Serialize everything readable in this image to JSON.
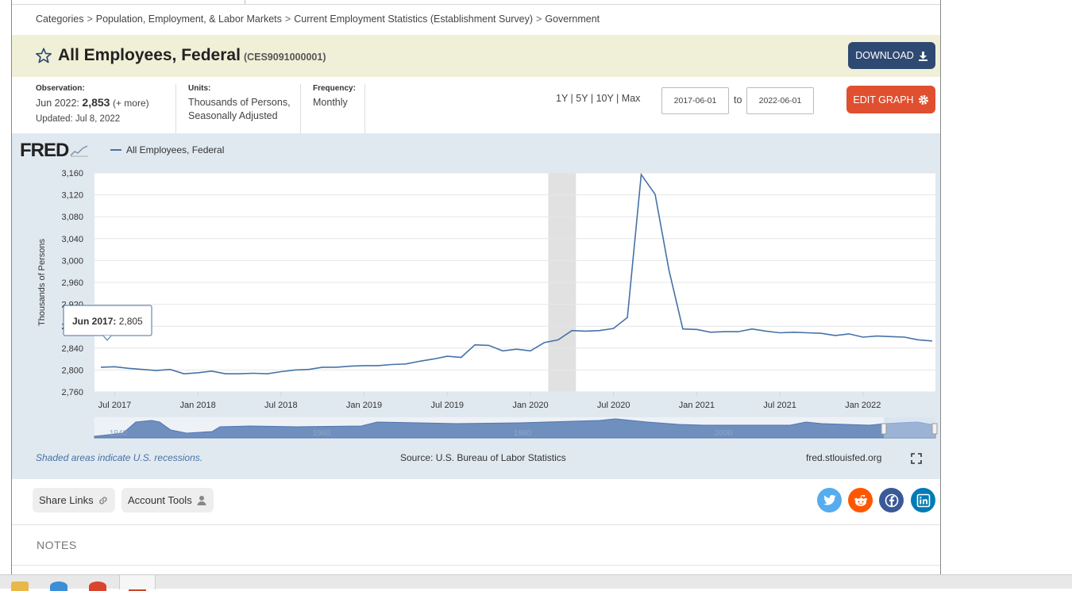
{
  "breadcrumb": [
    "Categories",
    "Population, Employment, & Labor Markets",
    "Current Employment Statistics (Establishment Survey)",
    "Government"
  ],
  "header": {
    "title": "All Employees, Federal",
    "series_id": "(CES9091000001)",
    "download_label": "DOWNLOAD"
  },
  "meta": {
    "observation_label": "Observation:",
    "observation_date": "Jun 2022:",
    "observation_value": "2,853",
    "observation_more": "(+ more)",
    "updated": "Updated: Jul 8, 2022",
    "units_label": "Units:",
    "units_line1": "Thousands of Persons,",
    "units_line2": "Seasonally Adjusted",
    "frequency_label": "Frequency:",
    "frequency_value": "Monthly"
  },
  "range": {
    "options": [
      "1Y",
      "5Y",
      "10Y",
      "Max"
    ],
    "start_date": "2017-06-01",
    "to_label": "to",
    "end_date": "2022-06-01"
  },
  "edit_graph_label": "EDIT GRAPH",
  "graph": {
    "logo": "FRED",
    "legend": "All Employees, Federal",
    "tooltip_date": "Jun 2017:",
    "tooltip_value": "2,805",
    "navigator_labels": [
      "1940",
      "1960",
      "1980",
      "2000"
    ],
    "recession_note": "Shaded areas indicate U.S. recessions.",
    "source": "Source: U.S. Bureau of Labor Statistics",
    "site": "fred.stlouisfed.org"
  },
  "chart_data": {
    "type": "line",
    "title": "",
    "xlabel": "",
    "ylabel": "Thousands of Persons",
    "ylim": [
      2760,
      3160
    ],
    "yticks": [
      "3,160",
      "3,120",
      "3,080",
      "3,040",
      "3,000",
      "2,960",
      "2,920",
      "2,880",
      "2,840",
      "2,800",
      "2,760"
    ],
    "xticks": [
      "Jul 2017",
      "Jan 2018",
      "Jul 2018",
      "Jan 2019",
      "Jul 2019",
      "Jan 2020",
      "Jul 2020",
      "Jan 2021",
      "Jul 2021",
      "Jan 2022"
    ],
    "x_start": "2017-06",
    "x_end": "2022-06",
    "recession": [
      "2020-02",
      "2020-04"
    ],
    "grid": true,
    "series": [
      {
        "name": "All Employees, Federal",
        "color": "#4572a7",
        "values": [
          2805,
          2806,
          2803,
          2801,
          2799,
          2801,
          2793,
          2795,
          2798,
          2793,
          2793,
          2794,
          2793,
          2797,
          2800,
          2801,
          2805,
          2805,
          2807,
          2808,
          2808,
          2810,
          2811,
          2816,
          2820,
          2825,
          2823,
          2846,
          2845,
          2835,
          2838,
          2835,
          2850,
          2855,
          2872,
          2871,
          2872,
          2876,
          2896,
          3157,
          3121,
          2982,
          2875,
          2874,
          2869,
          2870,
          2870,
          2875,
          2871,
          2868,
          2869,
          2868,
          2867,
          2863,
          2866,
          2860,
          2862,
          2861,
          2860,
          2855,
          2853
        ]
      }
    ]
  },
  "tools": {
    "share_links": "Share Links",
    "account_tools": "Account Tools"
  },
  "social": [
    "twitter-icon",
    "reddit-icon",
    "facebook-icon",
    "linkedin-icon"
  ],
  "notes_title": "NOTES"
}
